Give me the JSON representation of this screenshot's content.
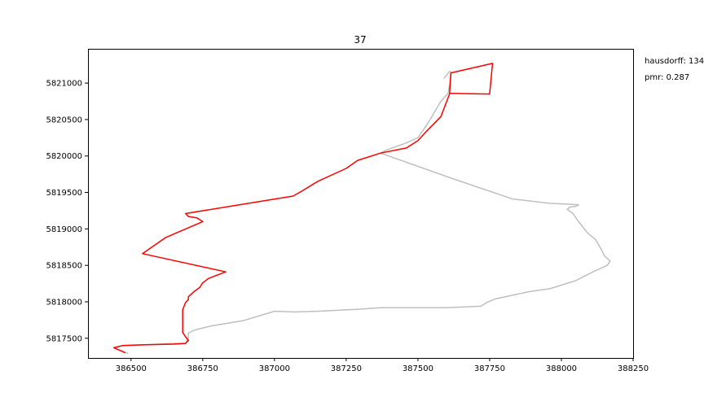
{
  "chart_data": {
    "type": "line",
    "title": "37",
    "xlabel": "",
    "ylabel": "",
    "xlim": [
      386350,
      388250
    ],
    "ylim": [
      5817230,
      5821470
    ],
    "x_ticks": [
      386500,
      386750,
      387000,
      387250,
      387500,
      387750,
      388000,
      388250
    ],
    "x_tick_labels": [
      "386500",
      "386750",
      "387000",
      "387250",
      "387500",
      "387750",
      "388000",
      "388250"
    ],
    "y_ticks": [
      5817500,
      5818000,
      5818500,
      5819000,
      5819500,
      5820000,
      5820500,
      5821000
    ],
    "y_tick_labels": [
      "5817500",
      "5818000",
      "5818500",
      "5819000",
      "5819500",
      "5820000",
      "5820500",
      "5821000"
    ],
    "grid": false,
    "series": [
      {
        "color": "#bfbfbf",
        "x": [
          386490,
          386440,
          386470,
          386540,
          386650,
          386690,
          386700,
          386700,
          386720,
          386780,
          386890,
          387000,
          387070,
          387150,
          387300,
          387370,
          387500,
          387600,
          387720,
          387740,
          387770,
          387890,
          387960,
          388050,
          388110,
          388160,
          388170,
          388150,
          388140,
          388120,
          388090,
          388060,
          388040,
          388020,
          388030,
          388050,
          388060,
          388020,
          387960,
          387830,
          387620,
          387370,
          387390,
          387460,
          387500,
          387530,
          387580,
          387605,
          387610,
          387615,
          387610,
          387590
        ],
        "y": [
          5817290,
          5817370,
          5817400,
          5817410,
          5817430,
          5817430,
          5817510,
          5817570,
          5817610,
          5817670,
          5817740,
          5817870,
          5817860,
          5817870,
          5817900,
          5817920,
          5817920,
          5817920,
          5817940,
          5817990,
          5818040,
          5818140,
          5818180,
          5818290,
          5818410,
          5818500,
          5818560,
          5818630,
          5818710,
          5818850,
          5818950,
          5819100,
          5819210,
          5819270,
          5819300,
          5819310,
          5819330,
          5819340,
          5819350,
          5819410,
          5819690,
          5820040,
          5820080,
          5820180,
          5820250,
          5820420,
          5820750,
          5820860,
          5820970,
          5821150,
          5821160,
          5821060
        ]
      },
      {
        "color": "#ff0000",
        "x": [
          386480,
          386440,
          386470,
          386540,
          386650,
          386690,
          386700,
          386690,
          386680,
          386680,
          386690,
          386700,
          386700,
          386720,
          386740,
          386750,
          386770,
          386790,
          386830,
          386540,
          386620,
          386750,
          386730,
          386700,
          386690,
          387065,
          387100,
          387150,
          387250,
          387290,
          387370,
          387460,
          387500,
          387530,
          387580,
          387610,
          387615,
          387760,
          387750,
          387610
        ],
        "y": [
          5817300,
          5817370,
          5817400,
          5817410,
          5817420,
          5817430,
          5817470,
          5817520,
          5817580,
          5817890,
          5817990,
          5818030,
          5818070,
          5818140,
          5818200,
          5818260,
          5818320,
          5818350,
          5818410,
          5818660,
          5818880,
          5819100,
          5819150,
          5819170,
          5819210,
          5819450,
          5819530,
          5819650,
          5819830,
          5819940,
          5820040,
          5820110,
          5820210,
          5820340,
          5820540,
          5820850,
          5821140,
          5821270,
          5820850,
          5820860
        ]
      }
    ],
    "annotations": [
      "hausdorff: 134",
      "pmr: 0.287"
    ]
  }
}
